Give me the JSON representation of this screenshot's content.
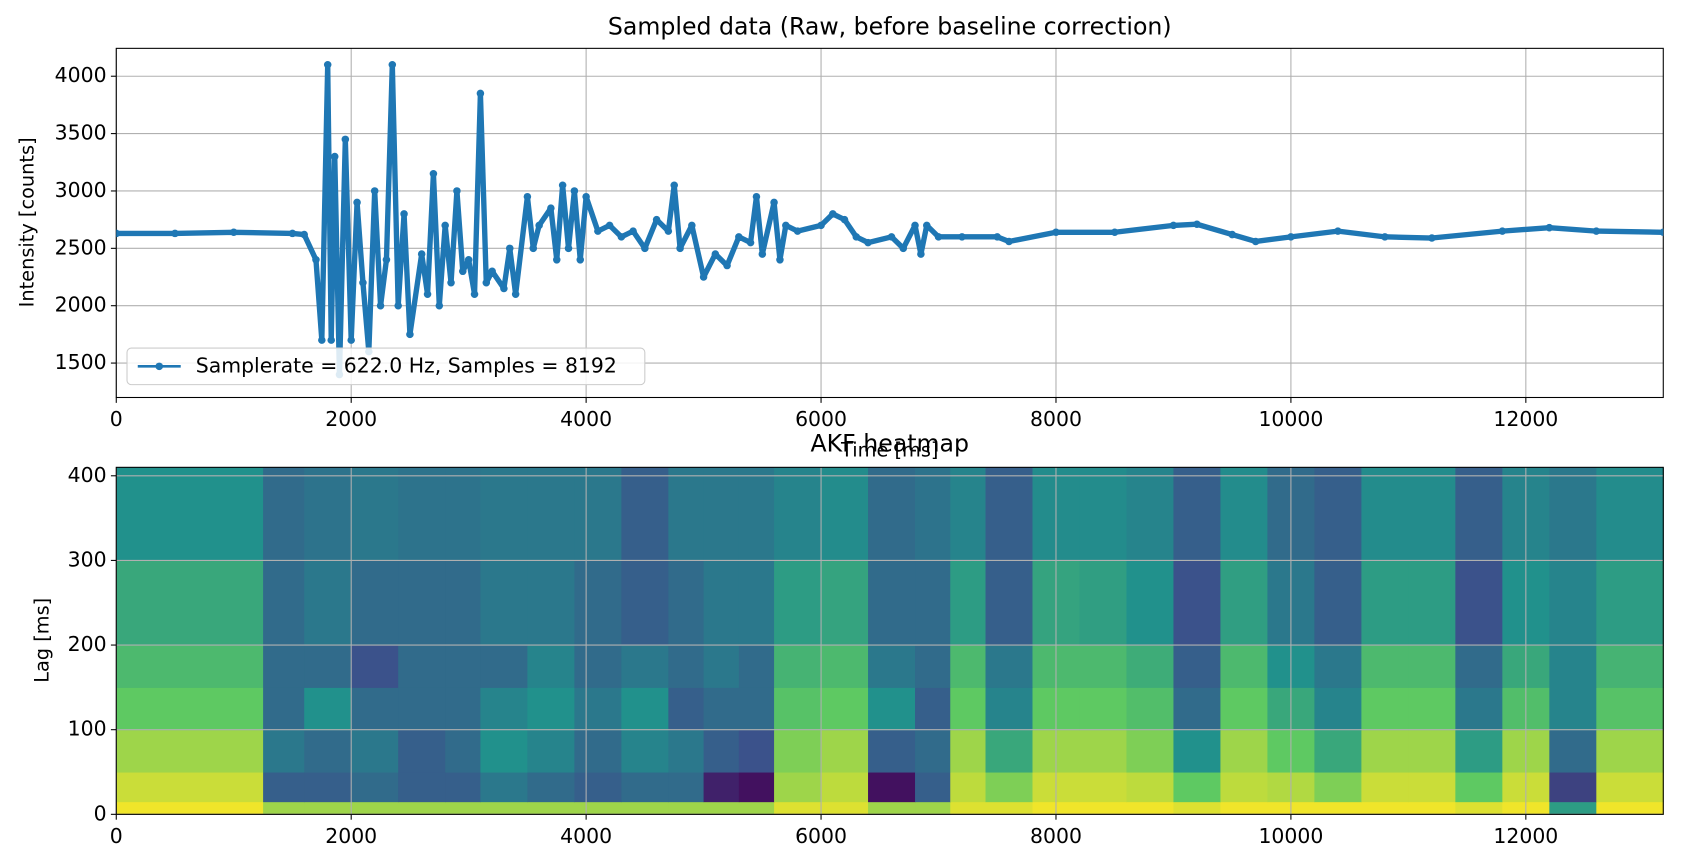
{
  "chart_data": [
    {
      "type": "line",
      "title": "Sampled data (Raw, before baseline correction)",
      "x_label": "Time [ms]",
      "y_label": "Intensity [counts]",
      "x": [
        0,
        500,
        1000,
        1500,
        1600,
        1700,
        1750,
        1800,
        1830,
        1860,
        1900,
        1950,
        2000,
        2050,
        2100,
        2150,
        2200,
        2250,
        2300,
        2350,
        2400,
        2450,
        2500,
        2600,
        2650,
        2700,
        2750,
        2800,
        2850,
        2900,
        2950,
        3000,
        3050,
        3100,
        3150,
        3200,
        3300,
        3350,
        3400,
        3500,
        3550,
        3600,
        3700,
        3750,
        3800,
        3850,
        3900,
        3950,
        4000,
        4100,
        4200,
        4300,
        4400,
        4500,
        4600,
        4700,
        4750,
        4800,
        4900,
        5000,
        5100,
        5200,
        5300,
        5400,
        5450,
        5500,
        5600,
        5650,
        5700,
        5800,
        6000,
        6100,
        6200,
        6300,
        6400,
        6600,
        6700,
        6800,
        6850,
        6900,
        7000,
        7200,
        7500,
        7600,
        8000,
        8500,
        9000,
        9200,
        9500,
        9700,
        10000,
        10400,
        10800,
        11200,
        11800,
        12200,
        12600,
        13170
      ],
      "series": [
        {
          "name": "Samplerate = 622.0 Hz, Samples = 8192",
          "color": "#1f77b4",
          "values": [
            2630,
            2630,
            2640,
            2630,
            2620,
            2400,
            1700,
            4100,
            1700,
            3300,
            1400,
            3450,
            1700,
            2900,
            2200,
            1600,
            3000,
            2000,
            2400,
            4100,
            2000,
            2800,
            1750,
            2450,
            2100,
            3150,
            2000,
            2700,
            2200,
            3000,
            2300,
            2400,
            2100,
            3850,
            2200,
            2300,
            2150,
            2500,
            2100,
            2950,
            2500,
            2700,
            2850,
            2400,
            3050,
            2500,
            3000,
            2400,
            2950,
            2650,
            2700,
            2600,
            2650,
            2500,
            2750,
            2650,
            3050,
            2500,
            2700,
            2250,
            2450,
            2350,
            2600,
            2550,
            2950,
            2450,
            2900,
            2400,
            2700,
            2650,
            2700,
            2800,
            2750,
            2600,
            2550,
            2600,
            2500,
            2700,
            2450,
            2700,
            2600,
            2600,
            2600,
            2560,
            2640,
            2640,
            2700,
            2710,
            2620,
            2560,
            2600,
            2650,
            2600,
            2590,
            2650,
            2680,
            2650,
            2640
          ]
        }
      ],
      "xlim": [
        0,
        13170
      ],
      "ylim": [
        1200,
        4243
      ],
      "xticks": [
        0,
        2000,
        4000,
        6000,
        8000,
        10000,
        12000
      ],
      "yticks": [
        1500,
        2000,
        2500,
        3000,
        3500,
        4000
      ],
      "grid": true,
      "legend": "lower left"
    },
    {
      "type": "heatmap",
      "title": "AKF heatmap",
      "y_label": "Lag [ms]",
      "colormap": "viridis",
      "zlim": [
        0,
        1
      ],
      "x_edges": [
        0,
        1250,
        1600,
        2000,
        2400,
        2800,
        3100,
        3500,
        3900,
        4300,
        4700,
        5000,
        5300,
        5600,
        6000,
        6400,
        6800,
        7100,
        7400,
        7800,
        8200,
        8600,
        9000,
        9400,
        9800,
        10200,
        10600,
        11000,
        11400,
        11800,
        12200,
        12600,
        13170
      ],
      "y_edges": [
        0,
        15,
        50,
        100,
        150,
        200,
        300,
        410
      ],
      "z": [
        [
          0.98,
          0.85,
          0.85,
          0.85,
          0.85,
          0.85,
          0.85,
          0.85,
          0.85,
          0.85,
          0.85,
          0.85,
          0.85,
          0.95,
          0.95,
          0.85,
          0.85,
          0.95,
          0.95,
          0.98,
          0.98,
          0.98,
          0.95,
          0.98,
          0.98,
          0.98,
          0.98,
          0.98,
          0.95,
          0.98,
          0.55,
          0.98
        ],
        [
          0.92,
          0.3,
          0.3,
          0.35,
          0.3,
          0.3,
          0.4,
          0.35,
          0.3,
          0.35,
          0.35,
          0.1,
          0.05,
          0.85,
          0.9,
          0.05,
          0.3,
          0.9,
          0.8,
          0.92,
          0.92,
          0.9,
          0.75,
          0.9,
          0.88,
          0.8,
          0.92,
          0.92,
          0.75,
          0.92,
          0.2,
          0.92
        ],
        [
          0.85,
          0.4,
          0.35,
          0.4,
          0.3,
          0.35,
          0.5,
          0.45,
          0.35,
          0.45,
          0.4,
          0.3,
          0.25,
          0.8,
          0.85,
          0.3,
          0.35,
          0.85,
          0.6,
          0.85,
          0.85,
          0.8,
          0.5,
          0.85,
          0.75,
          0.6,
          0.85,
          0.85,
          0.55,
          0.85,
          0.35,
          0.85
        ],
        [
          0.75,
          0.35,
          0.5,
          0.35,
          0.35,
          0.35,
          0.45,
          0.5,
          0.4,
          0.5,
          0.3,
          0.35,
          0.35,
          0.72,
          0.75,
          0.5,
          0.3,
          0.75,
          0.45,
          0.75,
          0.75,
          0.7,
          0.35,
          0.75,
          0.6,
          0.45,
          0.75,
          0.75,
          0.4,
          0.7,
          0.45,
          0.72
        ],
        [
          0.68,
          0.35,
          0.35,
          0.25,
          0.35,
          0.35,
          0.35,
          0.45,
          0.35,
          0.4,
          0.35,
          0.4,
          0.35,
          0.65,
          0.68,
          0.4,
          0.35,
          0.68,
          0.4,
          0.68,
          0.68,
          0.62,
          0.3,
          0.68,
          0.5,
          0.4,
          0.68,
          0.68,
          0.35,
          0.6,
          0.45,
          0.65
        ],
        [
          0.6,
          0.35,
          0.4,
          0.35,
          0.35,
          0.35,
          0.4,
          0.4,
          0.35,
          0.3,
          0.35,
          0.4,
          0.4,
          0.55,
          0.58,
          0.35,
          0.35,
          0.55,
          0.3,
          0.58,
          0.56,
          0.5,
          0.25,
          0.56,
          0.4,
          0.3,
          0.55,
          0.55,
          0.25,
          0.5,
          0.45,
          0.55
        ],
        [
          0.5,
          0.35,
          0.38,
          0.4,
          0.38,
          0.38,
          0.4,
          0.4,
          0.4,
          0.3,
          0.4,
          0.4,
          0.4,
          0.45,
          0.48,
          0.35,
          0.38,
          0.45,
          0.3,
          0.48,
          0.48,
          0.45,
          0.3,
          0.48,
          0.35,
          0.3,
          0.48,
          0.48,
          0.3,
          0.45,
          0.4,
          0.48
        ]
      ],
      "xlim": [
        0,
        13170
      ],
      "ylim": [
        0,
        410
      ],
      "xticks": [
        0,
        2000,
        4000,
        6000,
        8000,
        10000,
        12000
      ],
      "yticks": [
        0,
        100,
        200,
        300,
        400
      ],
      "grid": true
    }
  ]
}
